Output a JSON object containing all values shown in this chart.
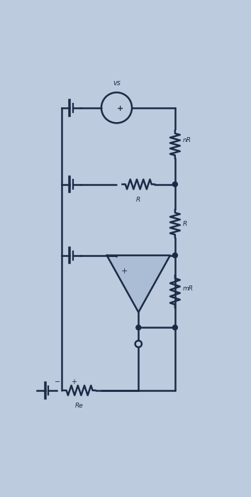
{
  "bg_color": "#bccbde",
  "line_color": "#1e2a45",
  "labels": {
    "vs": "vs",
    "nR": "nR",
    "R1": "R",
    "R2": "R",
    "mR": "mR",
    "Re": "Re"
  },
  "fig_w": 3.54,
  "fig_h": 7.0,
  "dpi": 100
}
